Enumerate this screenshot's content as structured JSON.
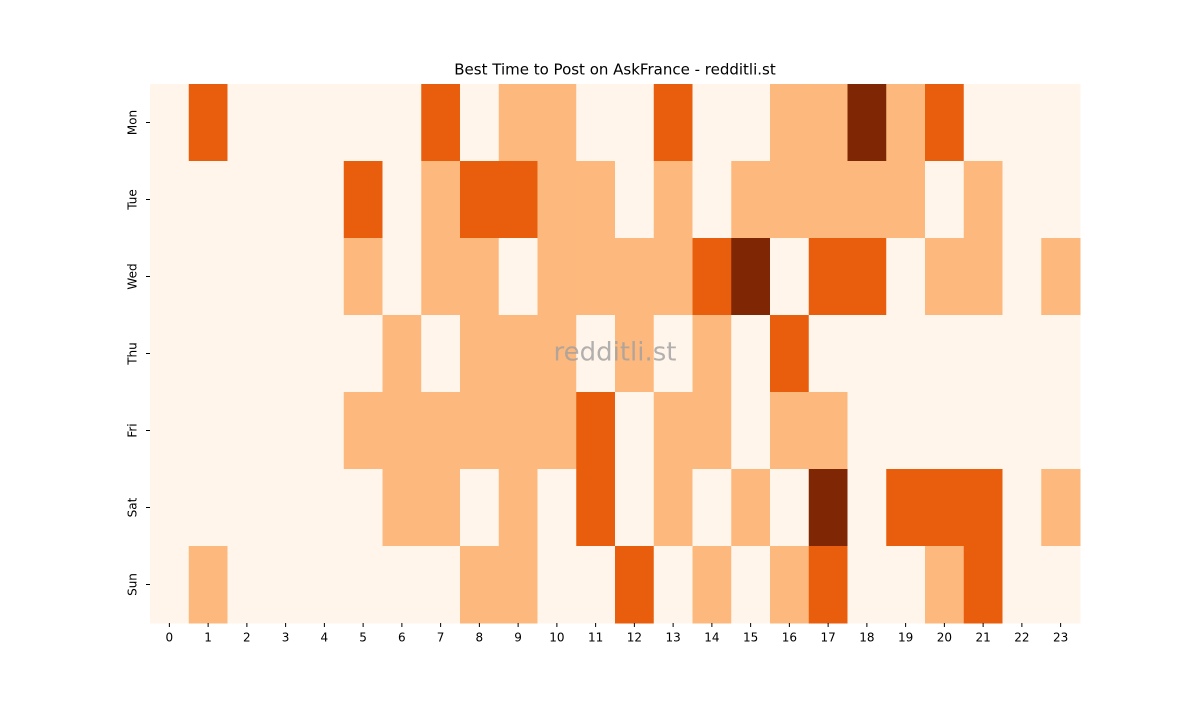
{
  "chart_data": {
    "type": "heatmap",
    "title": "Best Time to Post on AskFrance - redditli.st",
    "watermark": "redditli.st",
    "x": [
      "0",
      "1",
      "2",
      "3",
      "4",
      "5",
      "6",
      "7",
      "8",
      "9",
      "10",
      "11",
      "12",
      "13",
      "14",
      "15",
      "16",
      "17",
      "18",
      "19",
      "20",
      "21",
      "22",
      "23"
    ],
    "y": [
      "Mon",
      "Tue",
      "Wed",
      "Thu",
      "Fri",
      "Sat",
      "Sun"
    ],
    "values": [
      [
        0,
        2,
        0,
        0,
        0,
        0,
        0,
        2,
        0,
        1,
        1,
        0,
        0,
        2,
        0,
        0,
        1,
        1,
        3,
        1,
        2,
        0,
        0,
        0
      ],
      [
        0,
        0,
        0,
        0,
        0,
        2,
        0,
        1,
        2,
        2,
        1,
        1,
        0,
        1,
        0,
        1,
        1,
        1,
        1,
        1,
        0,
        1,
        0,
        0
      ],
      [
        0,
        0,
        0,
        0,
        0,
        1,
        0,
        1,
        1,
        0,
        1,
        1,
        1,
        1,
        2,
        3,
        0,
        2,
        2,
        0,
        1,
        1,
        0,
        1
      ],
      [
        0,
        0,
        0,
        0,
        0,
        0,
        1,
        0,
        1,
        1,
        1,
        0,
        1,
        0,
        1,
        0,
        2,
        0,
        0,
        0,
        0,
        0,
        0,
        0
      ],
      [
        0,
        0,
        0,
        0,
        0,
        1,
        1,
        1,
        1,
        1,
        1,
        2,
        0,
        1,
        1,
        0,
        1,
        1,
        0,
        0,
        0,
        0,
        0,
        0
      ],
      [
        0,
        0,
        0,
        0,
        0,
        0,
        1,
        1,
        0,
        1,
        0,
        2,
        0,
        1,
        0,
        1,
        0,
        3,
        0,
        2,
        2,
        2,
        0,
        1
      ],
      [
        0,
        1,
        0,
        0,
        0,
        0,
        0,
        0,
        1,
        1,
        0,
        0,
        2,
        0,
        1,
        0,
        1,
        2,
        0,
        0,
        1,
        2,
        0,
        0
      ]
    ],
    "colors": [
      "#fff5eb",
      "#fdb97d",
      "#e95e0d",
      "#7f2704"
    ]
  }
}
